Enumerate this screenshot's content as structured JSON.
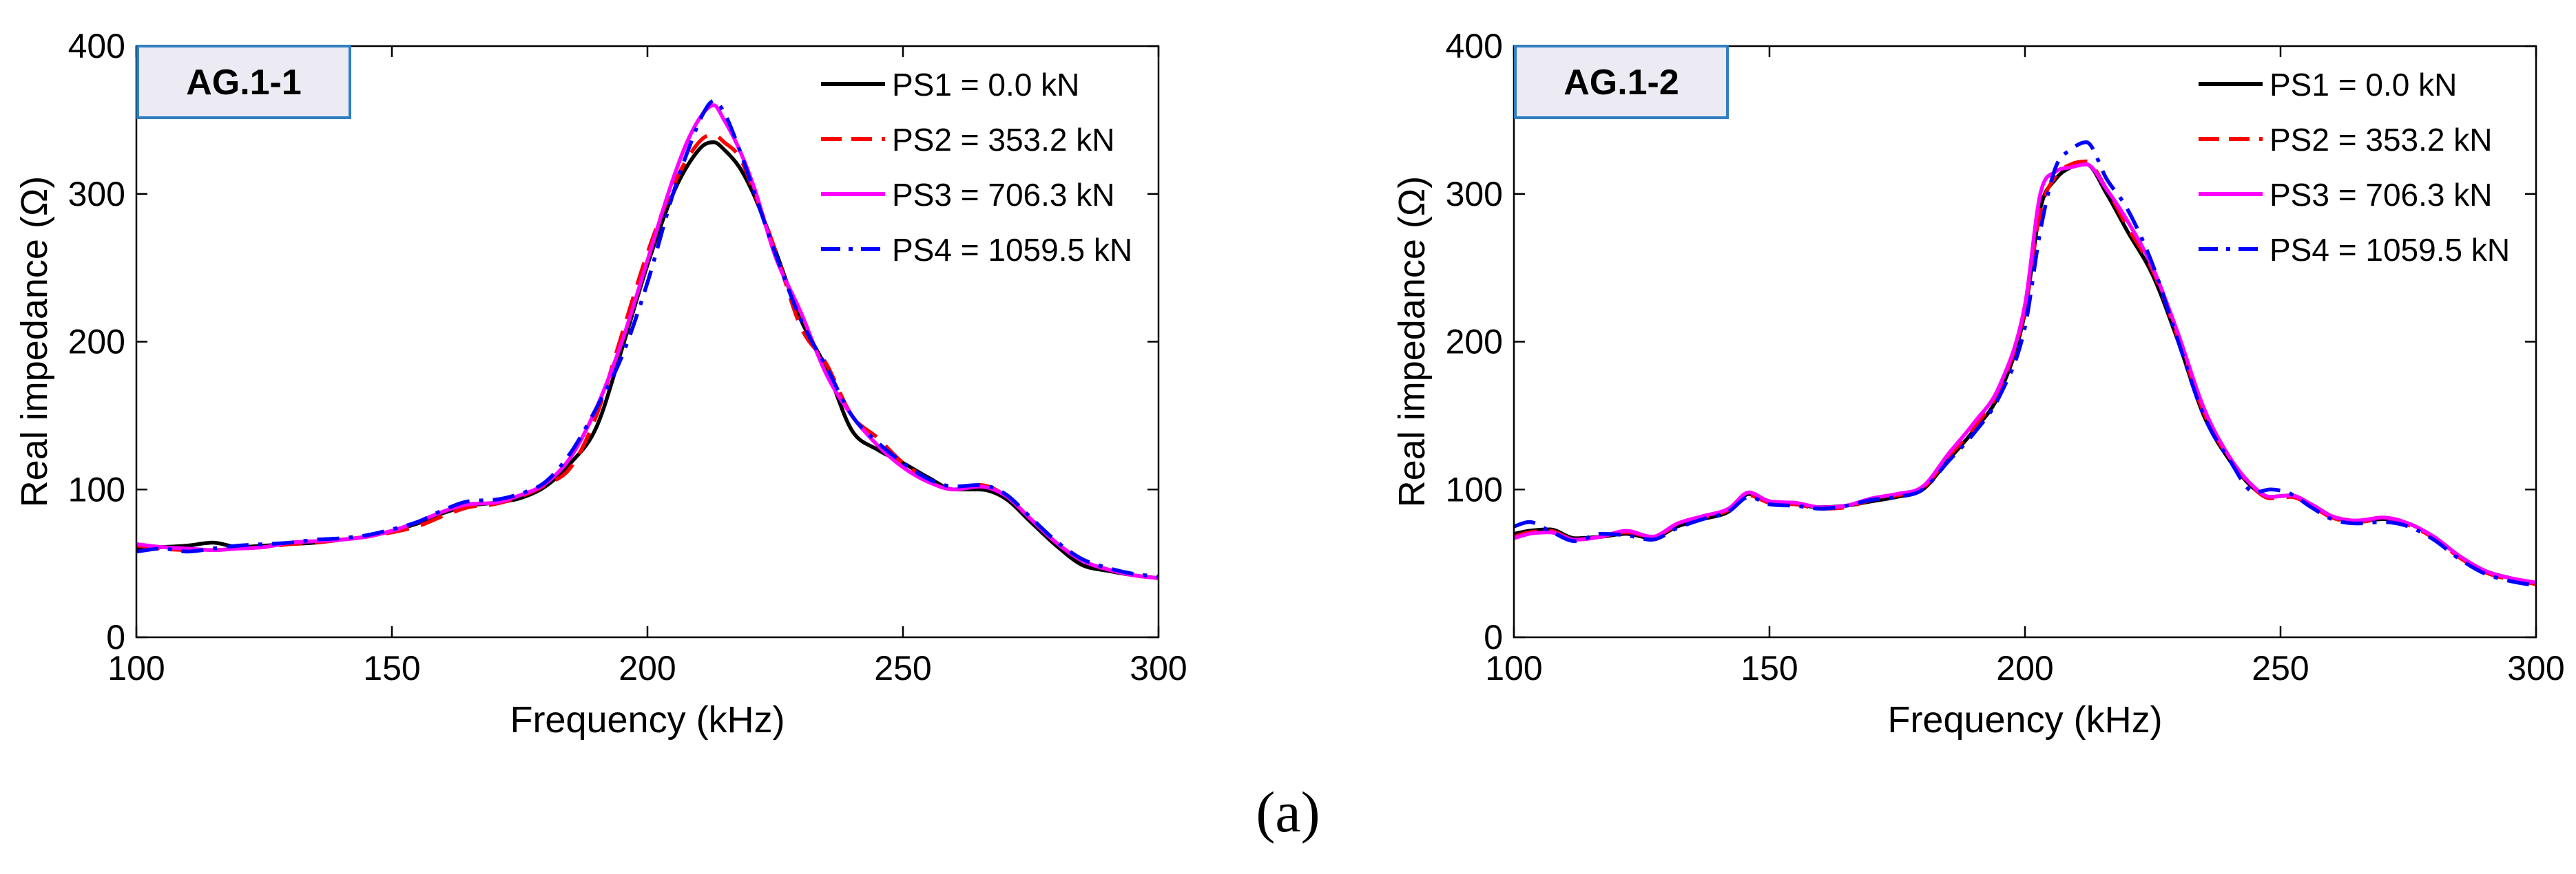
{
  "figure_caption": "(a)",
  "colors": {
    "PS1": "#000000",
    "PS2": "#ff0000",
    "PS3": "#ff00ff",
    "PS4": "#0000ff",
    "panel_label_bg": "#ecebf3",
    "panel_label_border": "#2f7fc1"
  },
  "chart_data": [
    {
      "type": "line",
      "panel_label": "AG.1-1",
      "title": "",
      "xlabel": "Frequency (kHz)",
      "ylabel": "Real impedance (Ω)",
      "xlim": [
        100,
        300
      ],
      "ylim": [
        0,
        400
      ],
      "xticks": [
        100,
        150,
        200,
        250,
        300
      ],
      "yticks": [
        0,
        100,
        200,
        300,
        400
      ],
      "grid": false,
      "legend_position": "top-right",
      "x": [
        100,
        105,
        110,
        115,
        120,
        125,
        130,
        135,
        140,
        145,
        150,
        155,
        160,
        165,
        170,
        175,
        180,
        185,
        190,
        195,
        200,
        205,
        208,
        211,
        213,
        215,
        218,
        221,
        225,
        230,
        235,
        240,
        245,
        250,
        255,
        260,
        265,
        270,
        275,
        280,
        285,
        290,
        295,
        300
      ],
      "series": [
        {
          "name": "PS1 = 0.0 kN",
          "style": "solid",
          "values": [
            60,
            61,
            62,
            64,
            61,
            62,
            63,
            64,
            66,
            68,
            72,
            77,
            84,
            89,
            91,
            94,
            102,
            118,
            142,
            195,
            252,
            300,
            320,
            333,
            335,
            330,
            318,
            298,
            262,
            215,
            182,
            140,
            127,
            118,
            108,
            100,
            100,
            94,
            78,
            62,
            49,
            45,
            42,
            40
          ]
        },
        {
          "name": "PS2 = 353.2 kN",
          "style": "dash",
          "values": [
            62,
            60,
            59,
            59,
            60,
            61,
            63,
            64,
            66,
            68,
            71,
            75,
            82,
            88,
            90,
            95,
            103,
            115,
            150,
            205,
            260,
            305,
            325,
            338,
            340,
            335,
            325,
            300,
            262,
            210,
            185,
            150,
            135,
            118,
            107,
            100,
            103,
            96,
            80,
            64,
            52,
            46,
            42,
            40
          ]
        },
        {
          "name": "PS3 = 706.3 kN",
          "style": "solid",
          "values": [
            63,
            61,
            60,
            59,
            60,
            61,
            64,
            65,
            66,
            68,
            72,
            78,
            85,
            90,
            91,
            96,
            104,
            122,
            155,
            200,
            255,
            310,
            337,
            355,
            360,
            350,
            330,
            303,
            258,
            220,
            178,
            150,
            130,
            115,
            105,
            100,
            102,
            96,
            80,
            64,
            52,
            46,
            42,
            40
          ]
        },
        {
          "name": "PS4 = 1059.5 kN",
          "style": "dashdot",
          "values": [
            58,
            60,
            58,
            60,
            62,
            63,
            64,
            66,
            67,
            69,
            73,
            78,
            86,
            92,
            93,
            97,
            105,
            125,
            155,
            190,
            240,
            300,
            330,
            355,
            363,
            355,
            330,
            300,
            260,
            215,
            183,
            150,
            132,
            118,
            107,
            102,
            103,
            97,
            81,
            65,
            53,
            47,
            43,
            41
          ]
        }
      ]
    },
    {
      "type": "line",
      "panel_label": "AG.1-2",
      "title": "",
      "xlabel": "Frequency (kHz)",
      "ylabel": "Real impedance (Ω)",
      "xlim": [
        100,
        300
      ],
      "ylim": [
        0,
        400
      ],
      "xticks": [
        100,
        150,
        200,
        250,
        300
      ],
      "yticks": [
        0,
        100,
        200,
        300,
        400
      ],
      "grid": false,
      "legend_position": "top-right",
      "x": [
        100,
        103,
        107,
        112,
        117,
        122,
        127,
        132,
        137,
        142,
        146,
        150,
        155,
        160,
        165,
        170,
        175,
        180,
        185,
        190,
        195,
        200,
        203,
        206,
        209,
        212,
        216,
        220,
        225,
        230,
        235,
        240,
        245,
        248,
        252,
        256,
        260,
        265,
        270,
        275,
        280,
        285,
        290,
        295,
        300
      ],
      "series": [
        {
          "name": "PS1 = 0.0 kN",
          "style": "solid",
          "values": [
            70,
            72,
            73,
            67,
            68,
            70,
            67,
            75,
            80,
            85,
            97,
            92,
            90,
            88,
            89,
            92,
            95,
            100,
            120,
            140,
            165,
            220,
            290,
            310,
            318,
            320,
            300,
            275,
            245,
            200,
            150,
            120,
            100,
            95,
            96,
            90,
            82,
            78,
            80,
            77,
            68,
            55,
            45,
            40,
            36
          ]
        },
        {
          "name": "PS2 = 353.2 kN",
          "style": "dash",
          "values": [
            68,
            71,
            72,
            66,
            68,
            71,
            68,
            76,
            81,
            86,
            96,
            91,
            90,
            87,
            88,
            93,
            96,
            101,
            122,
            142,
            168,
            222,
            288,
            312,
            320,
            322,
            303,
            278,
            248,
            202,
            152,
            121,
            100,
            94,
            95,
            89,
            81,
            78,
            80,
            76,
            67,
            54,
            44,
            39,
            36
          ]
        },
        {
          "name": "PS3 = 706.3 kN",
          "style": "solid",
          "values": [
            67,
            70,
            71,
            66,
            68,
            72,
            68,
            77,
            82,
            87,
            98,
            92,
            91,
            88,
            89,
            94,
            97,
            102,
            124,
            145,
            170,
            225,
            300,
            315,
            318,
            320,
            303,
            282,
            250,
            205,
            155,
            122,
            101,
            95,
            96,
            90,
            82,
            79,
            81,
            77,
            68,
            55,
            45,
            40,
            37
          ]
        },
        {
          "name": "PS4 = 1059.5 kN",
          "style": "dashdot",
          "values": [
            75,
            78,
            72,
            65,
            70,
            69,
            66,
            74,
            80,
            85,
            95,
            90,
            89,
            87,
            89,
            93,
            95,
            100,
            119,
            138,
            163,
            210,
            275,
            318,
            330,
            335,
            310,
            290,
            252,
            200,
            150,
            120,
            98,
            100,
            97,
            88,
            80,
            77,
            78,
            75,
            66,
            53,
            43,
            38,
            35
          ]
        }
      ]
    }
  ]
}
